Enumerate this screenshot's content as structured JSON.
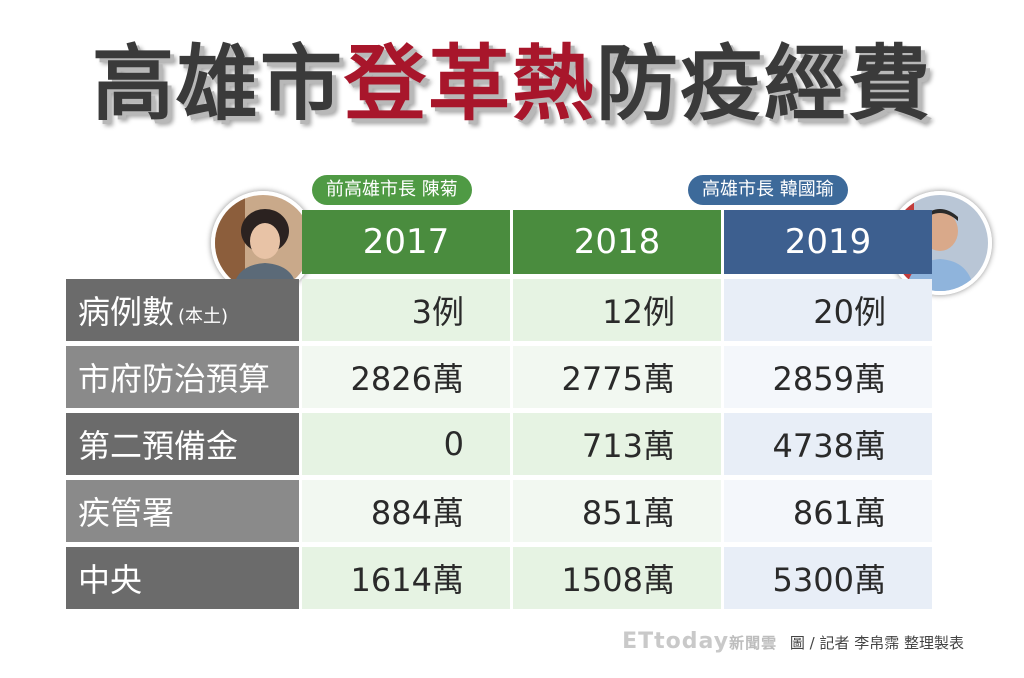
{
  "title": {
    "part1": "高雄市",
    "part2": "登革熱",
    "part3": "防疫經費"
  },
  "leaders": {
    "left": "前高雄市長  陳菊",
    "right": "高雄市長  韓國瑜"
  },
  "footer": {
    "logo": "ETtoday",
    "logo_sub": "新聞雲",
    "credit": "圖 / 記者 李帛霈 整理製表"
  },
  "colors": {
    "title_red": "#a8162b",
    "header_green": "#4a8c3e",
    "header_blue": "#3d5f8f"
  },
  "chart_data": {
    "type": "table",
    "columns": [
      "2017",
      "2018",
      "2019"
    ],
    "rows": [
      {
        "label": "病例數",
        "label_note": "(本土)",
        "values": [
          "3例",
          "12例",
          "20例"
        ]
      },
      {
        "label": "市府防治預算",
        "values": [
          "2826萬",
          "2775萬",
          "2859萬"
        ]
      },
      {
        "label": "第二預備金",
        "values": [
          "0",
          "713萬",
          "4738萬"
        ]
      },
      {
        "label": "疾管署",
        "values": [
          "884萬",
          "851萬",
          "861萬"
        ]
      },
      {
        "label": "中央",
        "values": [
          "1614萬",
          "1508萬",
          "5300萬"
        ]
      }
    ]
  }
}
